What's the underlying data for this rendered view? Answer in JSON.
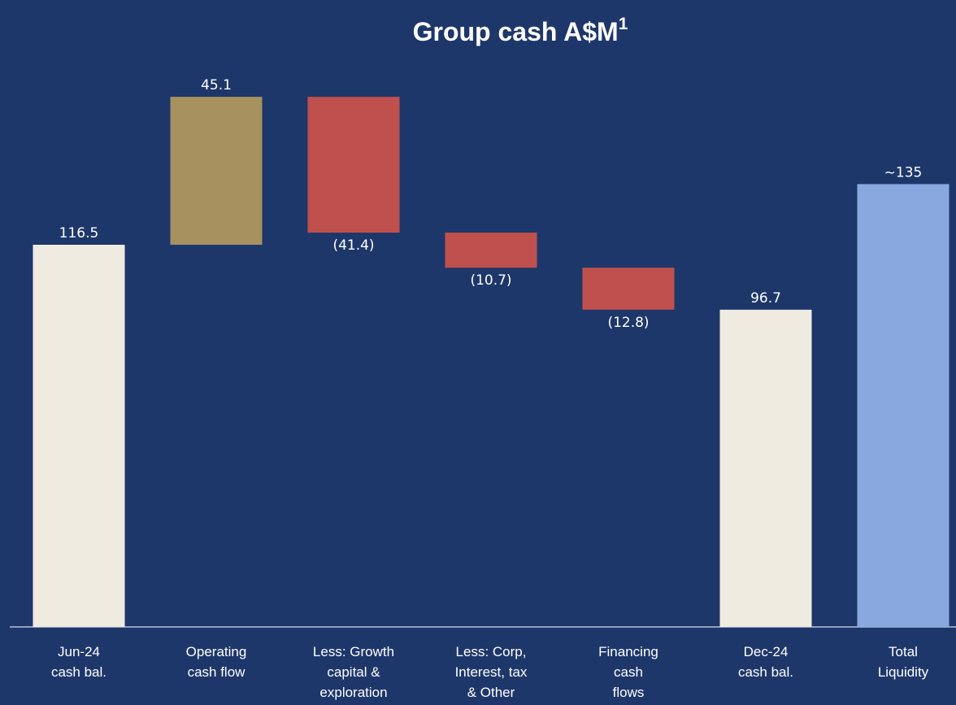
{
  "chart_data": {
    "type": "waterfall",
    "title": "Group cash A$M",
    "title_superscript": "1",
    "categories": [
      [
        "Jun-24",
        "cash bal."
      ],
      [
        "Operating",
        "cash flow"
      ],
      [
        "Less: Growth",
        "capital &",
        "exploration"
      ],
      [
        "Less: Corp,",
        "Interest, tax",
        "& Other"
      ],
      [
        "Financing",
        "cash",
        "flows"
      ],
      [
        "Dec-24",
        "cash bal."
      ],
      [
        "Total",
        "Liquidity"
      ]
    ],
    "values": [
      116.5,
      45.1,
      -41.4,
      -10.7,
      -12.8,
      96.7,
      135
    ],
    "value_labels": [
      "116.5",
      "45.1",
      "(41.4)",
      "(10.7)",
      "(12.8)",
      "96.7",
      "~135"
    ],
    "measure": [
      "absolute",
      "relative",
      "relative",
      "relative",
      "relative",
      "absolute",
      "absolute"
    ],
    "colors": [
      "#efebe1",
      "#a6915f",
      "#c0504d",
      "#c0504d",
      "#c0504d",
      "#efebe1",
      "#89a8e0"
    ],
    "ylim": [
      0,
      175
    ]
  }
}
